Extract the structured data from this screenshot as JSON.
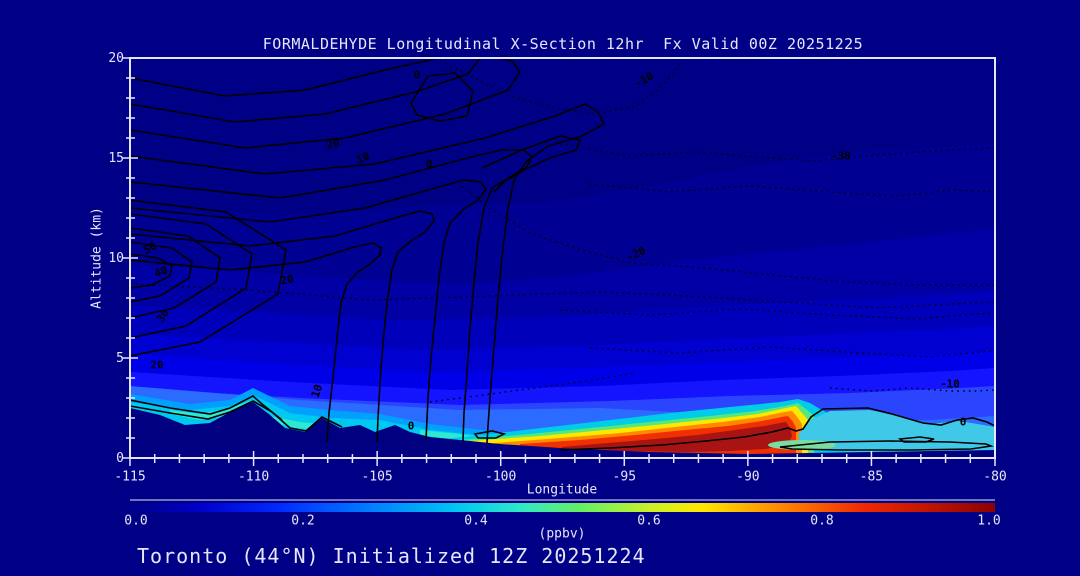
{
  "title": "FORMALDEHYDE Longitudinal X-Section 12hr  Fx Valid 00Z 20251225",
  "annotation": "Toronto (44°N) Initialized 12Z 20251224",
  "axes": {
    "x": {
      "label": "Longitude",
      "ticks": [
        "-115",
        "-110",
        "-105",
        "-100",
        "-95",
        "-90",
        "-85",
        "-80"
      ]
    },
    "y": {
      "label": "Altitude (km)",
      "ticks": [
        "0",
        "5",
        "10",
        "15",
        "20"
      ]
    }
  },
  "colorbar": {
    "ticks": [
      "0.0",
      "0.2",
      "0.4",
      "0.6",
      "0.8",
      "1.0"
    ],
    "unit": "(ppbv)"
  },
  "contour_labels": [
    "20",
    "10",
    "0",
    "0",
    "50",
    "40",
    "30",
    "20",
    "20",
    "10",
    "0",
    "0",
    "-10",
    "-30",
    "-20",
    "-10"
  ],
  "colors": {
    "ui": {
      "background": "#000087",
      "ink": "#E6E6FA",
      "terrain": "#000080",
      "contour": "#000000"
    },
    "bands": [
      "#000087",
      "#000093",
      "#0000A4",
      "#0000BA",
      "#0000D0",
      "#0000E8",
      "#1414FF",
      "#2B45FF",
      "#2B6BFF",
      "#00A0FF",
      "#00C8F0",
      "#2EE8D2"
    ],
    "plume": {
      "cyan": "#00CCE8",
      "green": "#55E87A",
      "yellow": "#FFE800",
      "orange": "#FF8A00",
      "red": "#F03000",
      "darkred": "#A81414"
    },
    "pool": {
      "fill": "#3FC8E8",
      "core": "#7ADCA0"
    },
    "colorbar": [
      {
        "o": "0%",
        "c": "#000087"
      },
      {
        "o": "8%",
        "c": "#0000C8"
      },
      {
        "o": "17%",
        "c": "#0028FF"
      },
      {
        "o": "28%",
        "c": "#0080FF"
      },
      {
        "o": "38%",
        "c": "#00C8F0"
      },
      {
        "o": "45%",
        "c": "#2EE8C8"
      },
      {
        "o": "52%",
        "c": "#64F064"
      },
      {
        "o": "60%",
        "c": "#C8F028"
      },
      {
        "o": "66%",
        "c": "#FFE800"
      },
      {
        "o": "75%",
        "c": "#FF8A00"
      },
      {
        "o": "85%",
        "c": "#F02800"
      },
      {
        "o": "100%",
        "c": "#8C0000"
      }
    ]
  },
  "chart_data": {
    "type": "heatmap",
    "title": "FORMALDEHYDE Longitudinal X-Section 12hr  Fx Valid 00Z 20251225",
    "xlabel": "Longitude",
    "ylabel": "Altitude (km)",
    "xlim": [
      -115,
      -80
    ],
    "ylim": [
      0,
      20
    ],
    "x_tick_major": 5,
    "x_tick_minor": 1,
    "y_tick_major": 5,
    "y_tick_minor": 1,
    "fill_variable": "formaldehyde mixing ratio",
    "fill_units": "ppbv",
    "fill_range": [
      0.0,
      1.0
    ],
    "colorbar_ticks": [
      0.0,
      0.2,
      0.4,
      0.6,
      0.8,
      1.0
    ],
    "overlay_contours": {
      "solid_labels": [
        0,
        10,
        20,
        30,
        40,
        50
      ],
      "dotted_labels": [
        -30,
        -20,
        -10
      ]
    },
    "terrain_profile_lon_altkm": [
      [
        -115,
        2.5
      ],
      [
        -113.5,
        1.7
      ],
      [
        -111.7,
        2.3
      ],
      [
        -110,
        2.8
      ],
      [
        -108.7,
        1.5
      ],
      [
        -107.2,
        1.7
      ],
      [
        -105.3,
        1.3
      ],
      [
        -102.9,
        1.05
      ],
      [
        -100.1,
        0.7
      ],
      [
        -97.6,
        0.5
      ],
      [
        -94,
        0.3
      ],
      [
        -89.9,
        0.2
      ],
      [
        -85,
        0.3
      ],
      [
        -80,
        0.4
      ]
    ],
    "surface_plume": {
      "lon_range": [
        -98,
        -87.5
      ],
      "peak_value_ppbv": 1.0,
      "depth_km": 1.5,
      "description": "Near-surface formaldehyde maximum (yellow-orange-dark red) hugging terrain east of the Rockies"
    },
    "secondary_feature": {
      "lon_range": [
        -88.5,
        -80
      ],
      "value_ppbv": 0.45,
      "description": "Elevated cyan-green pool below 1 km outlined by solid 0 contour"
    },
    "grid": false,
    "legend_position": "bottom-colorbar"
  }
}
